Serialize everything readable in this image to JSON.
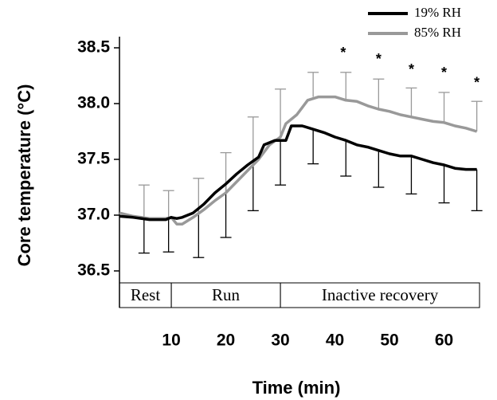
{
  "chart_data": {
    "type": "line",
    "x_label": "Time (min)",
    "y_label": "Core temperature (°C)",
    "xlim": [
      0.5,
      67
    ],
    "xticks": [
      10,
      20,
      30,
      40,
      50,
      60
    ],
    "ylim": [
      36.2,
      38.6
    ],
    "yticks": [
      36.5,
      37.0,
      37.5,
      38.0,
      38.5
    ],
    "ytick_labels": [
      "36.5",
      "37.0",
      "37.5",
      "38.0",
      "38.5"
    ],
    "legend_position": "top-right",
    "phases": [
      {
        "label": "Rest",
        "start": 0.5,
        "end": 10
      },
      {
        "label": "Run",
        "start": 10,
        "end": 30
      },
      {
        "label": "Inactive recovery",
        "start": 30,
        "end": 66.5
      }
    ],
    "series": [
      {
        "name": "19% RH",
        "color": "#000000",
        "error_direction": "down",
        "x": [
          0.5,
          3,
          6,
          9,
          10,
          11,
          12,
          14,
          16,
          18,
          20,
          22,
          24,
          26,
          27,
          29,
          31,
          32,
          34,
          36,
          38,
          40,
          42,
          44,
          46,
          48,
          50,
          52,
          54,
          56,
          58,
          60,
          62,
          64,
          66
        ],
        "values": [
          36.99,
          36.98,
          36.96,
          36.96,
          36.98,
          36.97,
          36.98,
          37.02,
          37.1,
          37.2,
          37.28,
          37.37,
          37.45,
          37.52,
          37.63,
          37.67,
          37.67,
          37.8,
          37.8,
          37.77,
          37.74,
          37.7,
          37.67,
          37.63,
          37.61,
          37.58,
          37.55,
          37.53,
          37.53,
          37.5,
          37.47,
          37.45,
          37.42,
          37.41,
          37.41
        ],
        "error_bars": {
          "x": [
            5,
            9.5,
            15,
            20,
            25,
            30,
            36,
            42,
            48,
            54,
            60,
            66
          ],
          "values": [
            36.97,
            36.96,
            37.06,
            37.28,
            37.49,
            37.67,
            37.77,
            37.67,
            37.58,
            37.53,
            37.45,
            37.41
          ],
          "errors": [
            0.31,
            0.29,
            0.44,
            0.48,
            0.45,
            0.4,
            0.31,
            0.32,
            0.33,
            0.34,
            0.34,
            0.37
          ]
        }
      },
      {
        "name": "85% RH",
        "color": "#999999",
        "error_direction": "up",
        "x": [
          0.5,
          3,
          6,
          9,
          10,
          11,
          12,
          14,
          16,
          18,
          20,
          22,
          24,
          26,
          28,
          30,
          31,
          33,
          35,
          37,
          40,
          42,
          44,
          46,
          48,
          50,
          52,
          54,
          56,
          58,
          60,
          62,
          64,
          66
        ],
        "values": [
          37.02,
          36.99,
          36.97,
          36.97,
          36.98,
          36.92,
          36.92,
          36.98,
          37.05,
          37.13,
          37.2,
          37.3,
          37.4,
          37.5,
          37.63,
          37.7,
          37.82,
          37.9,
          38.03,
          38.06,
          38.06,
          38.03,
          38.02,
          37.98,
          37.95,
          37.93,
          37.9,
          37.88,
          37.86,
          37.84,
          37.83,
          37.8,
          37.78,
          37.75
        ],
        "error_bars": {
          "x": [
            5,
            9.5,
            15,
            20,
            25,
            30,
            36,
            42,
            48,
            54,
            60,
            66
          ],
          "values": [
            36.98,
            36.97,
            37.01,
            37.2,
            37.45,
            37.7,
            38.06,
            38.03,
            37.95,
            37.88,
            37.83,
            37.75
          ],
          "errors": [
            0.29,
            0.25,
            0.32,
            0.36,
            0.43,
            0.43,
            0.22,
            0.25,
            0.27,
            0.26,
            0.27,
            0.27
          ]
        }
      }
    ],
    "annotations": [
      {
        "text": "*",
        "x": 41.5,
        "y": 38.45
      },
      {
        "text": "*",
        "x": 48,
        "y": 38.39
      },
      {
        "text": "*",
        "x": 54,
        "y": 38.3
      },
      {
        "text": "*",
        "x": 60,
        "y": 38.27
      },
      {
        "text": "*",
        "x": 66,
        "y": 38.18
      }
    ]
  }
}
